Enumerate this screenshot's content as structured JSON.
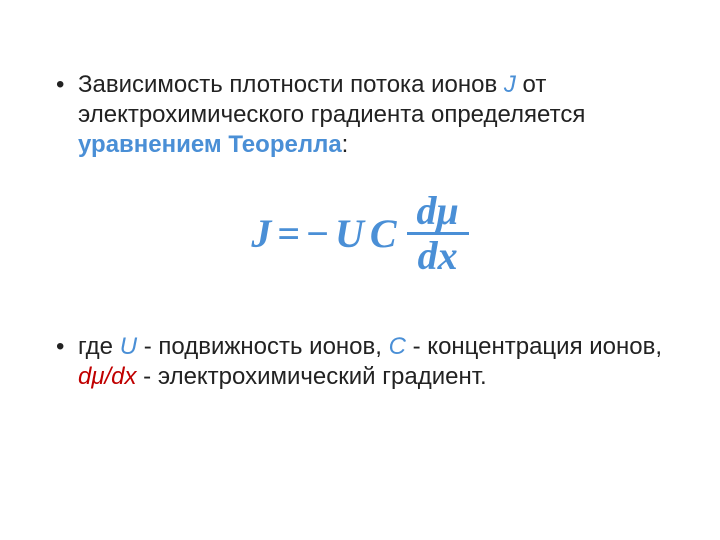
{
  "colors": {
    "text": "#222222",
    "accent_blue": "#4a8fd6",
    "accent_red": "#c00000",
    "background": "#ffffff",
    "equation": "#4a8fd6",
    "fraction_bar": "#4a8fd6"
  },
  "typography": {
    "body_font_family": "Arial",
    "body_font_size_pt": 18,
    "equation_font_family": "Cambria Math",
    "equation_font_size_pt": 30,
    "equation_bold": true,
    "equation_italic": true
  },
  "bullet1": {
    "run1": "Зависимость плотности потока ионов ",
    "J": "J",
    "run2": " от электрохимического градиента определяется ",
    "term": "уравнением Теорелла",
    "colon": ":"
  },
  "equation": {
    "type": "equation",
    "J": "J",
    "equals": "=",
    "minus": "−",
    "U": "U",
    "C": "C",
    "frac_num_d": "d",
    "frac_num_mu": "μ",
    "frac_den_d": "d",
    "frac_den_x": "x",
    "color": "#4a8fd6"
  },
  "bullet2": {
    "run1": "где ",
    "U": "U",
    "run2": " - подвижность ионов, ",
    "C": "C",
    "run3": " - концентрация ионов, ",
    "dmu_dx": "dμ/dx",
    "run4": " - электрохимический градиент."
  }
}
